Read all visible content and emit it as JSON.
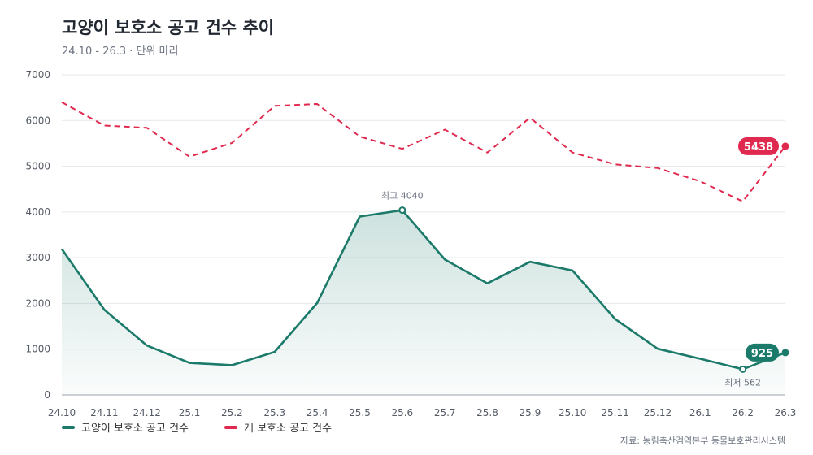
{
  "title": "고양이 보호소 공고 건수 추이",
  "subtitle": "24.10 - 26.3 · 단위 마리",
  "source": "자료: 농림축산검역본부 동물보호관리시스템",
  "colors": {
    "cat": "#1b7a6a",
    "dog": "#e0294e",
    "grid": "#e5e7eb",
    "axis_text": "#555b66"
  },
  "legend": [
    {
      "name": "고양이 보호소 공고 건수",
      "color": "#1b7a6a"
    },
    {
      "name": "개 보호소 공고 건수",
      "color": "#e0294e"
    }
  ],
  "chart_data": {
    "type": "line",
    "categories": [
      "24.10",
      "24.11",
      "24.12",
      "25.1",
      "25.2",
      "25.3",
      "25.4",
      "25.5",
      "25.6",
      "25.7",
      "25.8",
      "25.9",
      "25.10",
      "25.11",
      "25.12",
      "26.1",
      "26.2",
      "26.3"
    ],
    "ylim": [
      0,
      7000
    ],
    "yticks": [
      0,
      1000,
      2000,
      3000,
      4000,
      5000,
      6000,
      7000
    ],
    "grid": true,
    "legend_position": "bottom-left",
    "series": [
      {
        "name": "고양이 보호소 공고 건수",
        "style": "solid-area",
        "values": [
          3190,
          1860,
          1080,
          700,
          650,
          940,
          2010,
          3900,
          4040,
          2960,
          2440,
          2910,
          2720,
          1660,
          1010,
          790,
          562,
          925
        ]
      },
      {
        "name": "개 보호소 공고 건수",
        "style": "dashed",
        "values": [
          6400,
          5890,
          5840,
          5210,
          5510,
          6320,
          6360,
          5650,
          5380,
          5800,
          5300,
          6060,
          5300,
          5040,
          4960,
          4670,
          4230,
          5438
        ]
      }
    ],
    "annotations": [
      {
        "text": "최고 4040",
        "series": 0,
        "index": 8,
        "position": "above"
      },
      {
        "text": "최저 562",
        "series": 0,
        "index": 16,
        "position": "below"
      }
    ],
    "end_labels": [
      {
        "series": 1,
        "text": "5438"
      },
      {
        "series": 0,
        "text": "925"
      }
    ]
  }
}
